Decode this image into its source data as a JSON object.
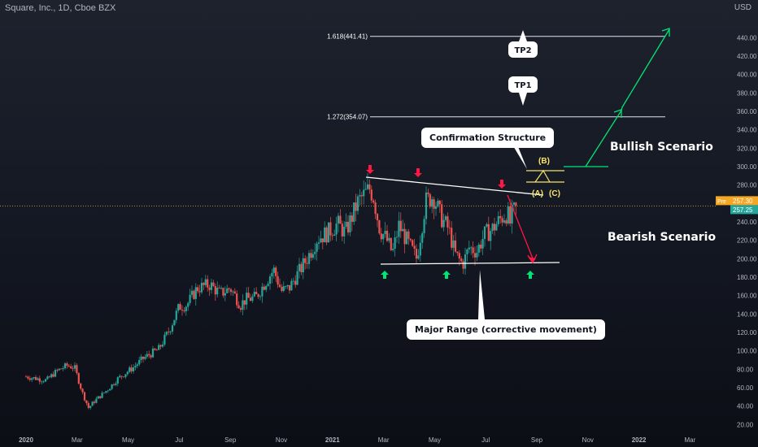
{
  "header": {
    "symbol": "Square, Inc., 1D, Cboe BZX",
    "currency": "USD"
  },
  "colors": {
    "bull": "#26a69a",
    "bear": "#ef5350",
    "arrow_up": "#00e676",
    "arrow_down": "#ff1744",
    "yellow": "#f7e46b",
    "price_line": "#f5a623"
  },
  "chart_data": {
    "type": "candlestick",
    "yaxis_ticks": [
      20,
      40,
      60,
      80,
      100,
      120,
      140,
      160,
      180,
      200,
      220,
      240,
      260,
      280,
      300,
      320,
      340,
      360,
      380,
      400,
      420,
      440
    ],
    "ylim": [
      15,
      465
    ],
    "xaxis": {
      "labels": [
        "2020",
        "Mar",
        "May",
        "Jul",
        "Sep",
        "Nov",
        "2021",
        "Mar",
        "May",
        "Jul",
        "Sep",
        "Nov",
        "2022",
        "Mar"
      ],
      "label_months": [
        0,
        2,
        4,
        6,
        8,
        10,
        12,
        14,
        16,
        18,
        20,
        22,
        24,
        26
      ]
    },
    "price_anchors": [
      [
        0,
        72
      ],
      [
        0.4,
        70
      ],
      [
        0.8,
        68
      ],
      [
        1.2,
        78
      ],
      [
        1.6,
        84
      ],
      [
        1.9,
        82
      ],
      [
        2.2,
        55
      ],
      [
        2.45,
        38
      ],
      [
        2.7,
        46
      ],
      [
        3.2,
        58
      ],
      [
        3.6,
        70
      ],
      [
        4.2,
        82
      ],
      [
        4.6,
        92
      ],
      [
        5.2,
        102
      ],
      [
        5.6,
        122
      ],
      [
        6.0,
        148
      ],
      [
        6.3,
        150
      ],
      [
        6.7,
        168
      ],
      [
        7.2,
        172
      ],
      [
        7.6,
        162
      ],
      [
        8.0,
        168
      ],
      [
        8.4,
        150
      ],
      [
        8.6,
        156
      ],
      [
        9.0,
        158
      ],
      [
        9.4,
        176
      ],
      [
        9.7,
        188
      ],
      [
        10.0,
        165
      ],
      [
        10.3,
        168
      ],
      [
        10.6,
        182
      ],
      [
        11.0,
        200
      ],
      [
        11.4,
        222
      ],
      [
        11.8,
        228
      ],
      [
        12.2,
        238
      ],
      [
        12.5,
        228
      ],
      [
        12.8,
        248
      ],
      [
        13.0,
        262
      ],
      [
        13.2,
        268
      ],
      [
        13.45,
        276
      ],
      [
        13.6,
        268
      ],
      [
        13.85,
        232
      ],
      [
        14.1,
        222
      ],
      [
        14.35,
        206
      ],
      [
        14.6,
        236
      ],
      [
        15.0,
        215
      ],
      [
        15.3,
        200
      ],
      [
        15.65,
        262
      ],
      [
        15.95,
        268
      ],
      [
        16.25,
        245
      ],
      [
        16.55,
        232
      ],
      [
        16.8,
        205
      ],
      [
        17.1,
        194
      ],
      [
        17.35,
        212
      ],
      [
        17.65,
        208
      ],
      [
        17.95,
        226
      ],
      [
        18.25,
        232
      ],
      [
        18.6,
        244
      ],
      [
        18.85,
        250
      ],
      [
        18.95,
        238
      ],
      [
        19.05,
        250
      ],
      [
        19.2,
        254
      ]
    ],
    "current_price": 257.3,
    "price_labels": {
      "pre_tag": "Pre",
      "pre_value": "257.30",
      "last_value": "257.25"
    },
    "fib_levels": [
      {
        "label": "1.618(441.41)",
        "value": 441.41
      },
      {
        "label": "1.272(354.07)",
        "value": 354.07
      }
    ],
    "targets": [
      "TP2",
      "TP1"
    ],
    "wave_labels": [
      "(B)",
      "(A)",
      "(C)"
    ],
    "annotations": {
      "confirmation": "Confirmation Structure",
      "range": "Major Range (corrective movement)",
      "bullish": "Bullish Scenario",
      "bearish": "Bearish Scenario"
    }
  }
}
